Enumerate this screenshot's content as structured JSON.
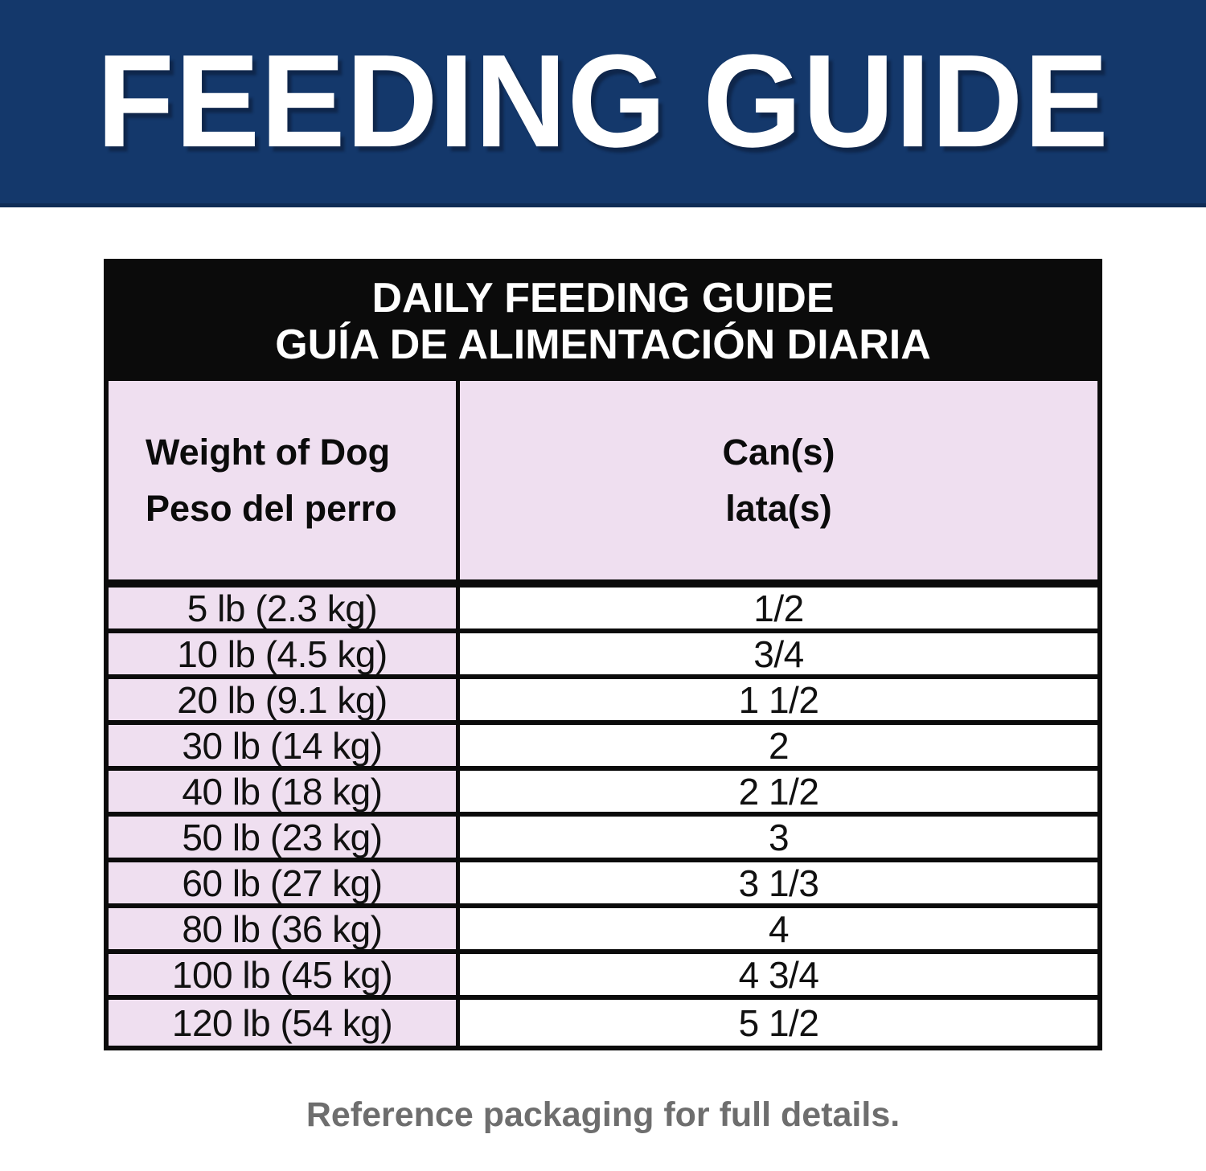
{
  "banner": {
    "title": "FEEDING GUIDE"
  },
  "feeding_table": {
    "title_line1": "DAILY FEEDING GUIDE",
    "title_line2": "GUÍA DE ALIMENTACIÓN DIARIA",
    "columns": {
      "weight_en": "Weight of Dog",
      "weight_es": "Peso del perro",
      "cans_en": "Can(s)",
      "cans_es": "lata(s)"
    },
    "rows": [
      {
        "weight": "5 lb (2.3 kg)",
        "cans": "1/2"
      },
      {
        "weight": "10 lb (4.5 kg)",
        "cans": "3/4"
      },
      {
        "weight": "20 lb (9.1 kg)",
        "cans": "1 1/2"
      },
      {
        "weight": "30 lb (14 kg)",
        "cans": "2"
      },
      {
        "weight": "40 lb (18 kg)",
        "cans": "2 1/2"
      },
      {
        "weight": "50 lb (23 kg)",
        "cans": "3"
      },
      {
        "weight": "60 lb (27 kg)",
        "cans": "3 1/3"
      },
      {
        "weight": "80 lb (36 kg)",
        "cans": "4"
      },
      {
        "weight": "100 lb (45 kg)",
        "cans": "4 3/4"
      },
      {
        "weight": "120 lb (54 kg)",
        "cans": "5 1/2"
      }
    ]
  },
  "footer": {
    "note": "Reference packaging for full details."
  },
  "colors": {
    "banner-bg": "#14386b",
    "banner-edge": "#0f2c55",
    "line": "#0b0b0b",
    "cell-pink": "#efdff0",
    "note-gray": "#6e6e6e"
  }
}
